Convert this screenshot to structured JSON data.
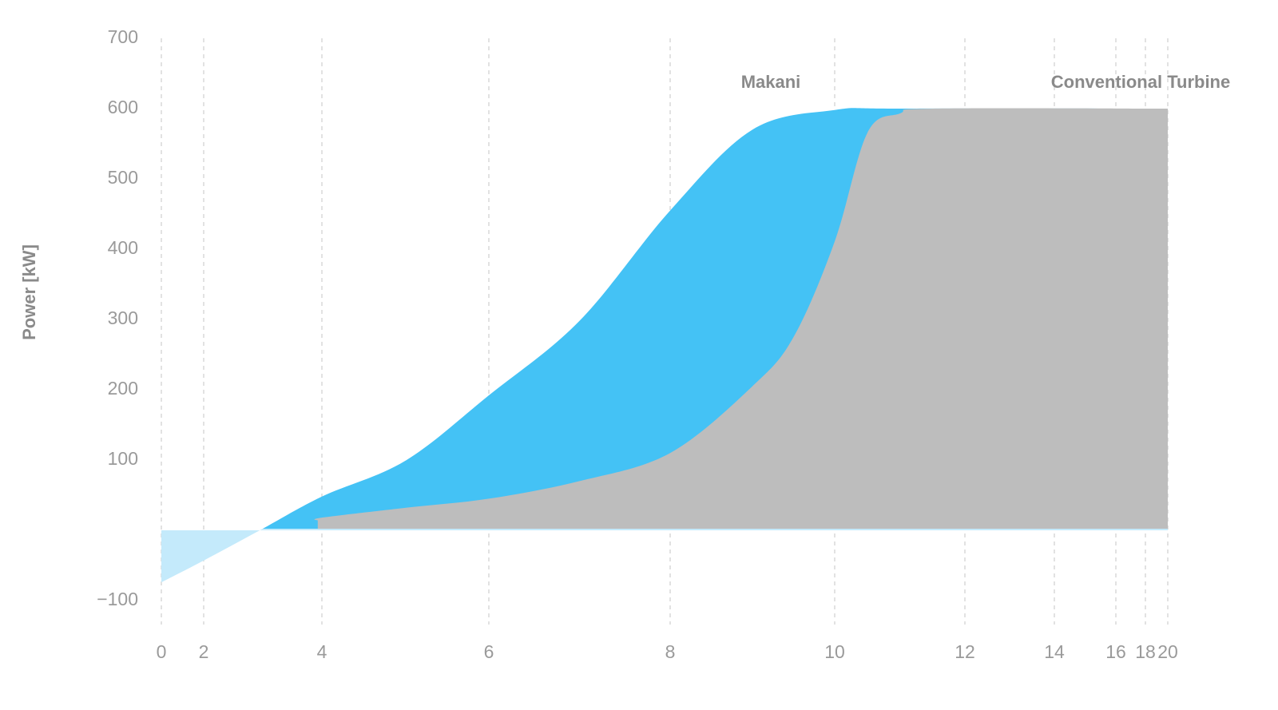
{
  "chart_data": {
    "type": "area",
    "ylabel": "Power [kW]",
    "xticks": [
      0,
      2,
      4,
      6,
      8,
      10,
      12,
      14,
      16,
      18,
      20
    ],
    "xlim": [
      0,
      20
    ],
    "ylim": [
      -100,
      700
    ],
    "yticks": [
      {
        "value": -100,
        "label": "−100"
      },
      100,
      200,
      300,
      400,
      500,
      600,
      700
    ],
    "grid": true,
    "negative_color": "#c4eafb",
    "series": [
      {
        "name": "Makani",
        "color": "#44c2f5",
        "x": [
          0,
          2,
          2.95,
          4,
          5,
          6,
          7,
          8,
          9,
          10,
          11,
          20
        ],
        "values": [
          -74,
          -43,
          0,
          48,
          99,
          192,
          298,
          455,
          570,
          598,
          600,
          600
        ]
      },
      {
        "name": "Conventional Turbine",
        "color": "#bdbdbd",
        "x": [
          3.93,
          4,
          5,
          6,
          7,
          8,
          9,
          9.5,
          10,
          10.5,
          11,
          11.5,
          20
        ],
        "values": [
          14,
          18,
          32,
          45,
          70,
          110,
          205,
          275,
          411,
          565,
          593,
          600,
          600
        ]
      }
    ]
  }
}
